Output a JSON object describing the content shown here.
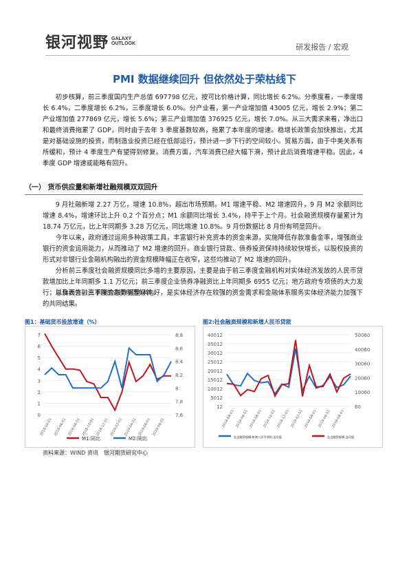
{
  "header": {
    "logo_cn": "银河视野",
    "logo_en_1": "GALAXY",
    "logo_en_2": "OUTLOOK",
    "category": "研发报告 / 宏观"
  },
  "title": "PMI 数据继续回升 但依然处于荣枯线下",
  "intro": "初步核算，前三季度国内生产总值 697798 亿元，按可比价格计算，同比增长 6.2%。分季度看，一季度增长 6.4%，二季度增长 6.2%，三季度增长 6.0%。分产业看，第一产业增加值 43005 亿元，增长 2.9%；第二产业增加值 277869 亿元，增长 5.6%；第三产业增加值 376925 亿元，增长 7.0%。从三大需求来看，净出口和最终消费拖累了 GDP，同时由于去年 3 季度基数较高，拖累了本年度的增速。稳增长政策会加快推出，尤其是对基础设施的投资，而制造业投资已经在低部运行，预计进一步下行的空间较小。贸易方面，由于中美关系有所缓和，预计 4 季度生产有望得到修复。消费方面，汽车消费已经大幅下滑，预计此后消费增速平稳。因此，4 季度 GDP 增速或能略有回升。",
  "section1": {
    "heading": "（一） 货币供应量和新增社融规模双双回升",
    "p1": "9 月社融新增 2.27 万亿，增速 10.8%，超出市场预期。M1 增速平稳、M2 增速回升，9 月 M2 余额同比增速 8.4%，增速环比上升 0.2 个百分点；M1 余额同比增长 3.4%，持平于上个月。社会融资规模存量累计为 18.74 万亿元，比上年同期多 3.28 万亿元，同比增速 10.8%。9 月份数据比 8 月份有明显回升。",
    "p2": "今年以来，政府通过运用多种政策工具，丰富银行补充资本的资金来源，实施降低存款准备金率，增强商业银行的资金运用能力，从而推动了 M2 增速的回升。商业银行贷款、债券投资保持持续较快增长，以股权投资的形式对非银行业金融机构融出的资金规模降幅正在收窄，这些均推动了 M2 增速的回升。",
    "p3": "分析前三季度社会融资规模同比多增的主要原因，主要是由于前三季度金融机构对实体经济发放的人民币贷款增加比上年同期多 1.1 万亿元；前三季度企业债券净融资比上年同期多 6955 亿元；地方政府专项债的大力发行；以及表外融资下降的态势明显好转。",
    "p4": "总体而言，三季度金融数据整体向好，是实体经济存在较强的资金需求和金融体系服务实体经济能力加强下的共同结果。"
  },
  "figure1": {
    "title": "图1：基础货币投放增速（%）",
    "left_ticks": [
      "7",
      "6",
      "5",
      "4",
      "3",
      "2",
      "1",
      "0"
    ],
    "right_ticks": [
      "8.8",
      "8.6",
      "8.4",
      "8.2",
      "8",
      "7.8",
      "7.6"
    ],
    "x_labels": [
      "2018-04-01",
      "2018-06-01",
      "2018-08-01",
      "2018-10-01",
      "2018-12-01",
      "2019-02-01",
      "2019-04-01",
      "2019-06-01",
      "2019-08-01"
    ],
    "legend_m1": "M1:同比",
    "legend_m2": "M2:同比",
    "color_m1": "#c0141e",
    "color_m2": "#1f6fc5"
  },
  "figure2": {
    "title": "图2:社会融资规模和新增人民币贷款",
    "left_ticks": [
      "40012",
      "35012",
      "30012",
      "25012",
      "20012",
      "15012",
      "10012",
      "5012",
      "12"
    ],
    "right_ticks": [
      "50060",
      "40060",
      "30060",
      "20060",
      "10060",
      "60"
    ],
    "x_labels": [
      "2018-04-01",
      "2018-06-01",
      "2018-08-01",
      "2018-10-01",
      "2018-12-01",
      "2019-02-01",
      "2019-04-01",
      "2019-06-01",
      "2019-08-01"
    ],
    "legend_a": "社会融资规模:新增人民币贷款:当月值",
    "legend_b": "社会融资规模:当月值",
    "color_a": "#1f6fc5",
    "color_b": "#c0141e"
  },
  "source": "资料来源：WIND 资讯　银河期货研究中心",
  "chart_data": [
    {
      "type": "line",
      "title": "图1：基础货币投放增速（%）",
      "x": [
        "2018-03",
        "2018-04",
        "2018-05",
        "2018-06",
        "2018-07",
        "2018-08",
        "2018-09",
        "2018-10",
        "2018-11",
        "2018-12",
        "2019-01",
        "2019-02",
        "2019-03",
        "2019-04",
        "2019-05",
        "2019-06",
        "2019-07",
        "2019-08",
        "2019-09"
      ],
      "series": [
        {
          "name": "M1:同比",
          "axis": "left",
          "values": [
            7.1,
            6.0,
            5.0,
            4.0,
            4.0,
            3.9,
            2.9,
            2.7,
            1.5,
            1.5,
            0.4,
            2.0,
            4.6,
            2.9,
            3.4,
            4.4,
            3.1,
            3.4,
            3.4
          ]
        },
        {
          "name": "M2:同比",
          "axis": "right",
          "values": [
            8.2,
            8.3,
            8.2,
            8.2,
            8.0,
            8.0,
            8.0,
            8.0,
            8.0,
            8.1,
            8.4,
            8.0,
            8.6,
            8.5,
            8.5,
            8.5,
            8.1,
            8.2,
            8.4
          ]
        }
      ],
      "ylim_left": [
        0,
        7
      ],
      "ylim_right": [
        7.6,
        8.8
      ]
    },
    {
      "type": "line",
      "title": "图2:社会融资规模和新增人民币贷款",
      "x": [
        "2018-03",
        "2018-04",
        "2018-05",
        "2018-06",
        "2018-07",
        "2018-08",
        "2018-09",
        "2018-10",
        "2018-11",
        "2018-12",
        "2019-01",
        "2019-02",
        "2019-03",
        "2019-04",
        "2019-05",
        "2019-06",
        "2019-07",
        "2019-08",
        "2019-09"
      ],
      "series": [
        {
          "name": "社会融资规模:新增人民币贷款:当月值",
          "axis": "left",
          "values": [
            18000,
            12000,
            11500,
            18400,
            14500,
            13200,
            13800,
            7000,
            12500,
            10800,
            32300,
            8900,
            16900,
            10200,
            11800,
            16600,
            10600,
            12100,
            16900
          ]
        },
        {
          "name": "社会融资规模:当月值",
          "axis": "right",
          "values": [
            16000,
            15600,
            7600,
            11800,
            10400,
            19400,
            21700,
            7300,
            15200,
            15900,
            46400,
            7100,
            28600,
            13600,
            14000,
            22600,
            10100,
            19800,
            22700
          ]
        }
      ],
      "ylim_left": [
        12,
        40012
      ],
      "ylim_right": [
        60,
        50060
      ]
    }
  ]
}
